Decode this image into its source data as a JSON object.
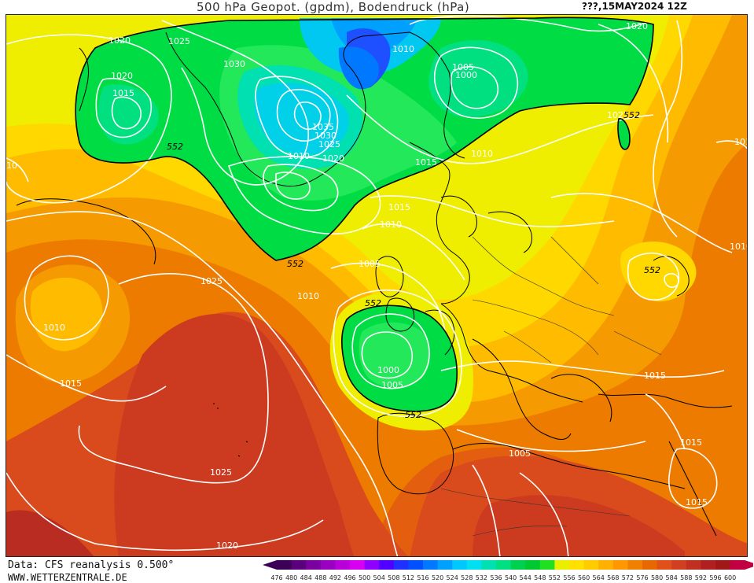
{
  "header": {
    "title": "500 hPa Geopot. (gpdm), Bodendruck (hPa)",
    "date": "???,15MAY2024 12Z"
  },
  "footer": {
    "data_source": "Data: CFS reanalysis 0.500°",
    "website": "WWW.WETTERZENTRALE.DE"
  },
  "legend": {
    "values": [
      "476",
      "480",
      "484",
      "488",
      "492",
      "496",
      "500",
      "504",
      "508",
      "512",
      "516",
      "520",
      "524",
      "528",
      "532",
      "536",
      "540",
      "544",
      "548",
      "552",
      "556",
      "560",
      "564",
      "568",
      "572",
      "576",
      "580",
      "584",
      "588",
      "592",
      "596",
      "600"
    ],
    "colors": [
      "#3b0055",
      "#5b007d",
      "#7a00a0",
      "#9a00c0",
      "#b800d8",
      "#d800f0",
      "#9000ff",
      "#5000ff",
      "#2030ff",
      "#0050ff",
      "#0078ff",
      "#00a0ff",
      "#00c8ff",
      "#00e0f0",
      "#00e0b0",
      "#00e080",
      "#00d050",
      "#00c830",
      "#20e020",
      "#e8f000",
      "#ffe000",
      "#ffcc00",
      "#ffb000",
      "#ff9800",
      "#f08000",
      "#e86800",
      "#e05018",
      "#d04020",
      "#c03020",
      "#b02020",
      "#a01818",
      "#c00040"
    ]
  },
  "map": {
    "colors": {
      "c552": "#00dd44",
      "c548": "#22e85a",
      "low": "#00c8f0",
      "low2": "#00a0ff",
      "low3": "#1e50ff",
      "c556": "#f0ee00",
      "c560": "#ffd800",
      "c564": "#ffbb00",
      "c568": "#f59a00",
      "c572": "#ec7b00",
      "c576": "#e45e10",
      "c580": "#d94a1c",
      "c584": "#cc3b20",
      "c588": "#b82c22"
    },
    "isobar_labels": [
      {
        "text": "1020"
      },
      {
        "text": "1025"
      },
      {
        "text": "1030"
      },
      {
        "text": "1020"
      },
      {
        "text": "1015"
      },
      {
        "text": "1010"
      },
      {
        "text": "1005"
      },
      {
        "text": "1000"
      },
      {
        "text": "1020"
      },
      {
        "text": "1035"
      },
      {
        "text": "1030"
      },
      {
        "text": "1025"
      },
      {
        "text": "1010"
      },
      {
        "text": "1020"
      },
      {
        "text": "1015"
      },
      {
        "text": "1010"
      },
      {
        "text": "1025"
      },
      {
        "text": "1015"
      },
      {
        "text": "1010"
      },
      {
        "text": "1005"
      },
      {
        "text": "1025"
      },
      {
        "text": "1010"
      },
      {
        "text": "1010"
      },
      {
        "text": "1000"
      },
      {
        "text": "1005"
      },
      {
        "text": "1015"
      },
      {
        "text": "1025"
      },
      {
        "text": "1020"
      },
      {
        "text": "1005"
      },
      {
        "text": "1015"
      },
      {
        "text": "1015"
      },
      {
        "text": "1015"
      },
      {
        "text": "101"
      },
      {
        "text": "10"
      },
      {
        "text": "1010"
      }
    ],
    "geopotential_labels": [
      {
        "text": "552"
      },
      {
        "text": "552"
      },
      {
        "text": "552"
      },
      {
        "text": "552"
      },
      {
        "text": "552"
      },
      {
        "text": "552"
      }
    ]
  }
}
